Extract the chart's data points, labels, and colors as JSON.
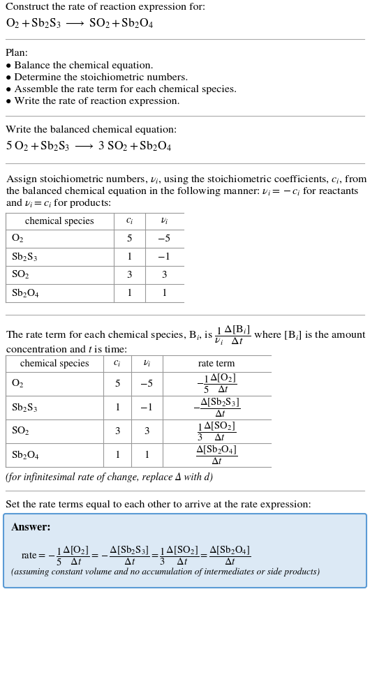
{
  "bg_color": "#ffffff",
  "text_color": "#000000",
  "title_text": "Construct the rate of reaction expression for:",
  "plan_header": "Plan:",
  "plan_items": [
    "• Balance the chemical equation.",
    "• Determine the stoichiometric numbers.",
    "• Assemble the rate term for each chemical species.",
    "• Write the rate of reaction expression."
  ],
  "balanced_header": "Write the balanced chemical equation:",
  "stoich_line1": "Assign stoichiometric numbers, νᵢ, using the stoichiometric coefficients, cᵢ, from",
  "stoich_line2": "the balanced chemical equation in the following manner: νᵢ = −cᵢ for reactants",
  "stoich_line3": "and νᵢ = cᵢ for products:",
  "table1_species": [
    "O₂",
    "Sb₂S₃",
    "SO₂",
    "Sb₂O₄"
  ],
  "table1_ci": [
    "5",
    "1",
    "3",
    "1"
  ],
  "table1_nu": [
    "−5",
    "−1",
    "3",
    "1"
  ],
  "rate_line1": "The rate term for each chemical species, Bᵢ, is",
  "rate_line2": "concentration and t is time:",
  "table2_species": [
    "O₂",
    "Sb₂S₃",
    "SO₂",
    "Sb₂O₄"
  ],
  "table2_ci": [
    "5",
    "1",
    "3",
    "1"
  ],
  "table2_nu": [
    "−5",
    "−1",
    "3",
    "1"
  ],
  "infinitesimal_note": "(for infinitesimal rate of change, replace Δ with d)",
  "set_equal_header": "Set the rate terms equal to each other to arrive at the rate expression:",
  "answer_box_color": "#dce9f5",
  "answer_border_color": "#5b9bd5",
  "answer_label": "Answer:",
  "assumption_note": "(assuming constant volume and no accumulation of intermediates or side products)",
  "divider_color": "#aaaaaa",
  "table_line_color": "#999999"
}
